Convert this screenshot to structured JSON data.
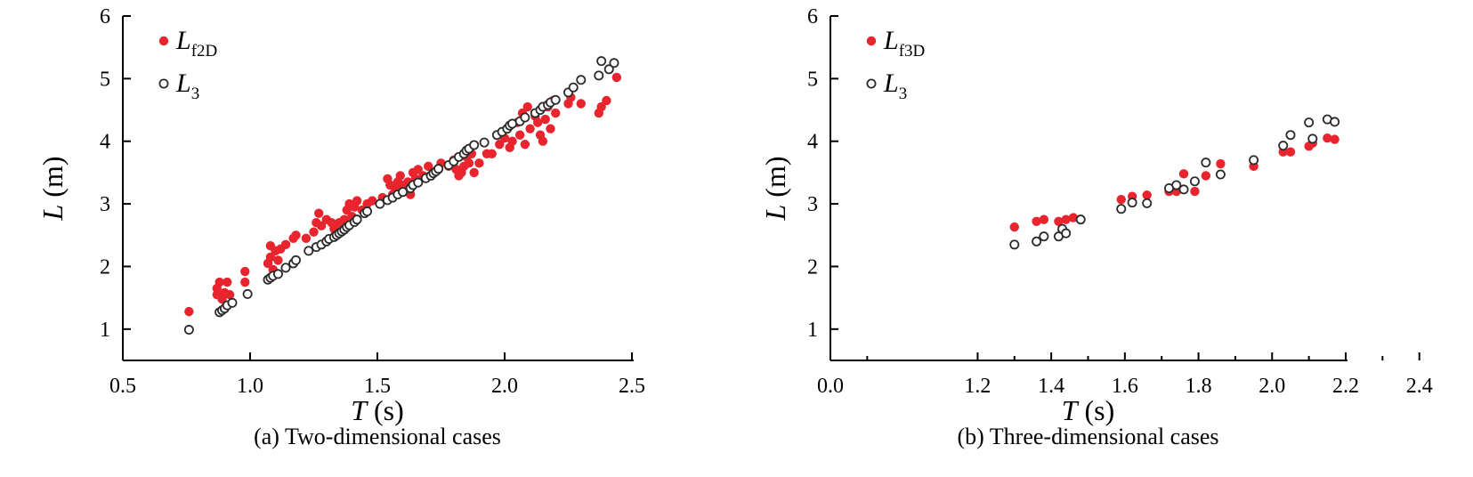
{
  "chart_data": [
    {
      "type": "scatter",
      "caption": "(a) Two-dimensional cases",
      "xlabel": {
        "var": "T",
        "unit": " (s)"
      },
      "ylabel": {
        "var": "L",
        "unit": " (m)"
      },
      "xlim": [
        0.5,
        2.5
      ],
      "ylim": [
        0.5,
        6
      ],
      "xticks": [
        0.5,
        1.0,
        1.5,
        2.0,
        2.5
      ],
      "xtick_labels": [
        "0.5",
        "1.0",
        "1.5",
        "2.0",
        "2.5"
      ],
      "yticks": [
        1,
        2,
        3,
        4,
        5,
        6
      ],
      "ytick_labels": [
        "1",
        "2",
        "3",
        "4",
        "5",
        "6"
      ],
      "legend_position": "top-left",
      "series": [
        {
          "name_main": "L",
          "name_sub": "f2D",
          "marker": "filled-circle",
          "color": "#e8242e",
          "points": [
            [
              0.76,
              1.28
            ],
            [
              0.87,
              1.55
            ],
            [
              0.87,
              1.65
            ],
            [
              0.88,
              1.75
            ],
            [
              0.89,
              1.48
            ],
            [
              0.9,
              1.58
            ],
            [
              0.91,
              1.75
            ],
            [
              0.92,
              1.55
            ],
            [
              0.98,
              1.75
            ],
            [
              0.98,
              1.92
            ],
            [
              1.07,
              2.05
            ],
            [
              1.08,
              2.15
            ],
            [
              1.08,
              2.33
            ],
            [
              1.09,
              1.95
            ],
            [
              1.1,
              2.25
            ],
            [
              1.11,
              2.1
            ],
            [
              1.12,
              2.28
            ],
            [
              1.14,
              2.35
            ],
            [
              1.17,
              2.45
            ],
            [
              1.18,
              2.5
            ],
            [
              1.22,
              2.45
            ],
            [
              1.25,
              2.55
            ],
            [
              1.26,
              2.7
            ],
            [
              1.27,
              2.85
            ],
            [
              1.28,
              2.65
            ],
            [
              1.3,
              2.75
            ],
            [
              1.32,
              2.7
            ],
            [
              1.33,
              2.6
            ],
            [
              1.35,
              2.7
            ],
            [
              1.37,
              2.75
            ],
            [
              1.38,
              2.9
            ],
            [
              1.39,
              3.0
            ],
            [
              1.4,
              2.8
            ],
            [
              1.41,
              2.95
            ],
            [
              1.42,
              3.05
            ],
            [
              1.44,
              2.9
            ],
            [
              1.46,
              3.0
            ],
            [
              1.48,
              3.05
            ],
            [
              1.52,
              3.1
            ],
            [
              1.54,
              3.4
            ],
            [
              1.55,
              3.3
            ],
            [
              1.56,
              3.15
            ],
            [
              1.57,
              3.25
            ],
            [
              1.58,
              3.35
            ],
            [
              1.59,
              3.45
            ],
            [
              1.6,
              3.3
            ],
            [
              1.61,
              3.2
            ],
            [
              1.62,
              3.35
            ],
            [
              1.63,
              3.15
            ],
            [
              1.64,
              3.5
            ],
            [
              1.65,
              3.4
            ],
            [
              1.66,
              3.55
            ],
            [
              1.68,
              3.45
            ],
            [
              1.7,
              3.6
            ],
            [
              1.72,
              3.5
            ],
            [
              1.74,
              3.55
            ],
            [
              1.75,
              3.65
            ],
            [
              1.78,
              3.6
            ],
            [
              1.8,
              3.7
            ],
            [
              1.81,
              3.55
            ],
            [
              1.82,
              3.45
            ],
            [
              1.83,
              3.5
            ],
            [
              1.84,
              3.6
            ],
            [
              1.85,
              3.75
            ],
            [
              1.86,
              3.65
            ],
            [
              1.87,
              3.8
            ],
            [
              1.88,
              3.5
            ],
            [
              1.9,
              3.65
            ],
            [
              1.93,
              3.8
            ],
            [
              1.95,
              3.8
            ],
            [
              1.98,
              3.95
            ],
            [
              2.0,
              4.05
            ],
            [
              2.01,
              4.2
            ],
            [
              2.02,
              3.9
            ],
            [
              2.03,
              4.0
            ],
            [
              2.05,
              4.3
            ],
            [
              2.06,
              4.1
            ],
            [
              2.07,
              4.45
            ],
            [
              2.08,
              3.95
            ],
            [
              2.09,
              4.55
            ],
            [
              2.1,
              4.2
            ],
            [
              2.12,
              4.4
            ],
            [
              2.13,
              4.3
            ],
            [
              2.14,
              4.1
            ],
            [
              2.15,
              4.0
            ],
            [
              2.16,
              4.35
            ],
            [
              2.17,
              4.55
            ],
            [
              2.18,
              4.2
            ],
            [
              2.19,
              4.65
            ],
            [
              2.2,
              4.45
            ],
            [
              2.25,
              4.6
            ],
            [
              2.26,
              4.7
            ],
            [
              2.3,
              4.6
            ],
            [
              2.37,
              4.45
            ],
            [
              2.38,
              4.55
            ],
            [
              2.4,
              4.65
            ],
            [
              2.44,
              5.02
            ]
          ]
        },
        {
          "name_main": "L",
          "name_sub": "3",
          "marker": "open-circle",
          "color": "#2b2b2b",
          "points": [
            [
              0.76,
              0.99
            ],
            [
              0.88,
              1.27
            ],
            [
              0.89,
              1.3
            ],
            [
              0.9,
              1.33
            ],
            [
              0.91,
              1.38
            ],
            [
              0.93,
              1.42
            ],
            [
              0.99,
              1.56
            ],
            [
              1.07,
              1.79
            ],
            [
              1.08,
              1.82
            ],
            [
              1.09,
              1.85
            ],
            [
              1.11,
              1.88
            ],
            [
              1.14,
              1.98
            ],
            [
              1.17,
              2.05
            ],
            [
              1.18,
              2.1
            ],
            [
              1.23,
              2.25
            ],
            [
              1.26,
              2.31
            ],
            [
              1.28,
              2.35
            ],
            [
              1.3,
              2.4
            ],
            [
              1.31,
              2.44
            ],
            [
              1.33,
              2.47
            ],
            [
              1.34,
              2.5
            ],
            [
              1.35,
              2.53
            ],
            [
              1.36,
              2.56
            ],
            [
              1.37,
              2.59
            ],
            [
              1.38,
              2.63
            ],
            [
              1.39,
              2.66
            ],
            [
              1.41,
              2.71
            ],
            [
              1.42,
              2.75
            ],
            [
              1.45,
              2.85
            ],
            [
              1.46,
              2.88
            ],
            [
              1.51,
              3.0
            ],
            [
              1.54,
              3.06
            ],
            [
              1.56,
              3.1
            ],
            [
              1.58,
              3.15
            ],
            [
              1.6,
              3.19
            ],
            [
              1.63,
              3.25
            ],
            [
              1.64,
              3.3
            ],
            [
              1.66,
              3.34
            ],
            [
              1.69,
              3.41
            ],
            [
              1.71,
              3.45
            ],
            [
              1.72,
              3.49
            ],
            [
              1.73,
              3.52
            ],
            [
              1.74,
              3.56
            ],
            [
              1.78,
              3.62
            ],
            [
              1.8,
              3.68
            ],
            [
              1.82,
              3.75
            ],
            [
              1.84,
              3.8
            ],
            [
              1.85,
              3.85
            ],
            [
              1.86,
              3.88
            ],
            [
              1.88,
              3.94
            ],
            [
              1.92,
              3.98
            ],
            [
              1.97,
              4.1
            ],
            [
              1.99,
              4.15
            ],
            [
              2.01,
              4.2
            ],
            [
              2.02,
              4.25
            ],
            [
              2.03,
              4.28
            ],
            [
              2.06,
              4.32
            ],
            [
              2.08,
              4.38
            ],
            [
              2.12,
              4.45
            ],
            [
              2.14,
              4.5
            ],
            [
              2.15,
              4.55
            ],
            [
              2.17,
              4.58
            ],
            [
              2.18,
              4.62
            ],
            [
              2.2,
              4.66
            ],
            [
              2.25,
              4.78
            ],
            [
              2.27,
              4.86
            ],
            [
              2.3,
              4.98
            ],
            [
              2.37,
              5.05
            ],
            [
              2.38,
              5.28
            ],
            [
              2.41,
              5.15
            ],
            [
              2.43,
              5.25
            ]
          ]
        }
      ]
    },
    {
      "type": "scatter",
      "caption": "(b) Three-dimensional cases",
      "xlabel": {
        "var": "T",
        "unit": " (s)"
      },
      "ylabel": {
        "var": "L",
        "unit": " (m)"
      },
      "xlim": [
        1.0,
        2.4
      ],
      "ylim": [
        0.5,
        6
      ],
      "x_axis_break": true,
      "xticks": [
        1.2,
        1.4,
        1.6,
        1.8,
        2.0,
        2.2,
        2.4
      ],
      "xtick_labels": [
        "1.2",
        "1.4",
        "1.6",
        "1.8",
        "2.0",
        "2.2",
        "2.4"
      ],
      "x_origin_label": "0.0",
      "yticks": [
        1,
        2,
        3,
        4,
        5,
        6
      ],
      "ytick_labels": [
        "1",
        "2",
        "3",
        "4",
        "5",
        "6"
      ],
      "legend_position": "top-left",
      "series": [
        {
          "name_main": "L",
          "name_sub": "f3D",
          "marker": "filled-circle",
          "color": "#e8242e",
          "points": [
            [
              1.3,
              2.63
            ],
            [
              1.36,
              2.72
            ],
            [
              1.38,
              2.75
            ],
            [
              1.42,
              2.72
            ],
            [
              1.44,
              2.75
            ],
            [
              1.46,
              2.78
            ],
            [
              1.59,
              3.07
            ],
            [
              1.62,
              3.12
            ],
            [
              1.66,
              3.14
            ],
            [
              1.72,
              3.2
            ],
            [
              1.74,
              3.2
            ],
            [
              1.76,
              3.48
            ],
            [
              1.79,
              3.2
            ],
            [
              1.82,
              3.45
            ],
            [
              1.86,
              3.64
            ],
            [
              1.95,
              3.6
            ],
            [
              2.03,
              3.83
            ],
            [
              2.05,
              3.83
            ],
            [
              2.1,
              3.92
            ],
            [
              2.11,
              3.97
            ],
            [
              2.15,
              4.05
            ],
            [
              2.17,
              4.03
            ]
          ]
        },
        {
          "name_main": "L",
          "name_sub": "3",
          "marker": "open-circle",
          "color": "#2b2b2b",
          "points": [
            [
              1.3,
              2.35
            ],
            [
              1.36,
              2.4
            ],
            [
              1.38,
              2.48
            ],
            [
              1.42,
              2.48
            ],
            [
              1.43,
              2.6
            ],
            [
              1.44,
              2.53
            ],
            [
              1.48,
              2.75
            ],
            [
              1.59,
              2.92
            ],
            [
              1.62,
              3.02
            ],
            [
              1.66,
              3.01
            ],
            [
              1.72,
              3.25
            ],
            [
              1.74,
              3.3
            ],
            [
              1.76,
              3.23
            ],
            [
              1.79,
              3.36
            ],
            [
              1.82,
              3.66
            ],
            [
              1.86,
              3.47
            ],
            [
              1.95,
              3.7
            ],
            [
              2.03,
              3.93
            ],
            [
              2.05,
              4.1
            ],
            [
              2.1,
              4.3
            ],
            [
              2.11,
              4.04
            ],
            [
              2.15,
              4.35
            ],
            [
              2.17,
              4.31
            ]
          ]
        }
      ]
    }
  ]
}
